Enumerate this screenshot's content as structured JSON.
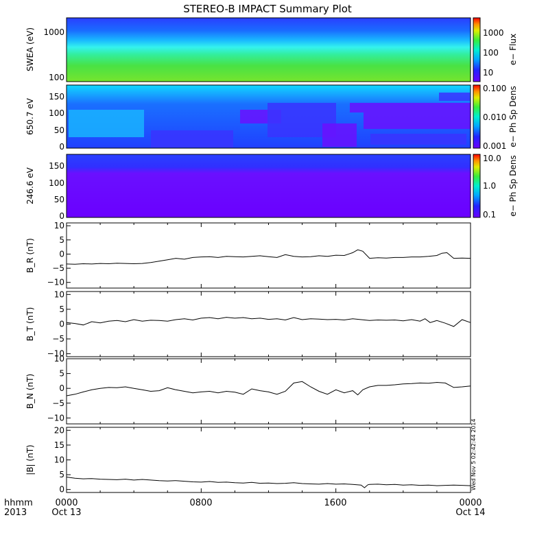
{
  "title": "STEREO-B IMPACT Summary Plot",
  "footer": {
    "hhmm_label": "hhmm",
    "year_label": "2013",
    "x_ticks": [
      "0000",
      "0800",
      "1600",
      "0000"
    ],
    "x_dates": [
      "Oct 13",
      "",
      "",
      "Oct 14"
    ],
    "stamp": "Wed Nov  5 02:42:44 2014"
  },
  "chart_data": [
    {
      "type": "heatmap",
      "ylabel": "SWEA (eV)",
      "y_scale": "log",
      "ylim": [
        95,
        2000
      ],
      "y_ticks": [
        "1000",
        "100"
      ],
      "colorbar": {
        "label": "e− Flux",
        "scale": "log",
        "ticks": [
          "1000",
          "100",
          "10"
        ]
      },
      "description_rows": [
        {
          "energy": 1500,
          "color": "#2a3fff"
        },
        {
          "energy": 900,
          "color": "#1a8cff"
        },
        {
          "energy": 500,
          "color": "#31f4d8"
        },
        {
          "energy": 300,
          "color": "#34ee7c"
        },
        {
          "energy": 150,
          "color": "#53e03b"
        },
        {
          "energy": 100,
          "color": "#6ae832"
        }
      ]
    },
    {
      "type": "heatmap",
      "ylabel": "650.7 eV",
      "ylim": [
        0,
        180
      ],
      "y_ticks": [
        "150",
        "100",
        "50",
        "0"
      ],
      "colorbar": {
        "label": "e− Ph Sp Dens",
        "scale": "log",
        "ticks": [
          "0.100",
          "0.010",
          "0.001"
        ]
      }
    },
    {
      "type": "heatmap",
      "ylabel": "246.6 eV",
      "ylim": [
        0,
        180
      ],
      "y_ticks": [
        "150",
        "100",
        "50",
        "0"
      ],
      "colorbar": {
        "label": "e− Ph Sp Dens",
        "scale": "log",
        "ticks": [
          "10.0",
          "1.0",
          "0.1"
        ]
      }
    },
    {
      "type": "line",
      "ylabel": "B_R (nT)",
      "ylim": [
        -12,
        11
      ],
      "y_ticks": [
        "10",
        "5",
        "0",
        "−5",
        "−10"
      ],
      "x_hours": [
        0,
        0.5,
        1,
        1.5,
        2,
        2.5,
        3,
        3.5,
        4,
        4.5,
        5,
        5.5,
        6,
        6.5,
        7,
        7.5,
        8,
        8.5,
        9,
        9.5,
        10,
        10.5,
        11,
        11.5,
        12,
        12.5,
        13,
        13.5,
        14,
        14.5,
        15,
        15.5,
        16,
        16.5,
        17,
        17.3,
        17.6,
        18,
        18.5,
        19,
        19.5,
        20,
        20.5,
        21,
        21.5,
        22,
        22.3,
        22.6,
        23,
        23.5,
        24
      ],
      "values": [
        -3.5,
        -3.6,
        -3.4,
        -3.5,
        -3.3,
        -3.4,
        -3.2,
        -3.3,
        -3.4,
        -3.3,
        -3.0,
        -2.5,
        -2.0,
        -1.5,
        -1.8,
        -1.2,
        -1.0,
        -0.9,
        -1.2,
        -0.8,
        -0.9,
        -1.0,
        -0.8,
        -0.6,
        -0.9,
        -1.2,
        -0.2,
        -0.8,
        -1.0,
        -0.9,
        -0.6,
        -0.8,
        -0.4,
        -0.5,
        0.5,
        1.5,
        1.0,
        -1.5,
        -1.3,
        -1.4,
        -1.2,
        -1.2,
        -1.0,
        -1.0,
        -0.8,
        -0.5,
        0.3,
        0.5,
        -1.5,
        -1.4,
        -1.5
      ]
    },
    {
      "type": "line",
      "ylabel": "B_T (nT)",
      "ylim": [
        -11,
        11
      ],
      "y_ticks": [
        "10",
        "5",
        "0",
        "−5",
        "−10"
      ],
      "x_hours": [
        0,
        0.5,
        1,
        1.5,
        2,
        2.5,
        3,
        3.5,
        4,
        4.5,
        5,
        5.5,
        6,
        6.5,
        7,
        7.5,
        8,
        8.5,
        9,
        9.5,
        10,
        10.5,
        11,
        11.5,
        12,
        12.5,
        13,
        13.5,
        14,
        14.5,
        15,
        15.5,
        16,
        16.5,
        17,
        17.5,
        18,
        18.5,
        19,
        19.5,
        20,
        20.5,
        21,
        21.3,
        21.6,
        22,
        22.5,
        23,
        23.5,
        24
      ],
      "values": [
        0.5,
        0.2,
        -0.3,
        0.8,
        0.4,
        1.0,
        1.2,
        0.8,
        1.5,
        1.0,
        1.3,
        1.2,
        1.0,
        1.5,
        1.8,
        1.4,
        2.0,
        2.2,
        1.8,
        2.3,
        2.0,
        2.2,
        1.8,
        2.0,
        1.6,
        1.8,
        1.4,
        2.2,
        1.5,
        1.8,
        1.7,
        1.5,
        1.6,
        1.4,
        1.8,
        1.5,
        1.2,
        1.4,
        1.3,
        1.4,
        1.1,
        1.5,
        1.0,
        1.8,
        0.5,
        1.2,
        0.3,
        -0.8,
        1.5,
        0.5
      ]
    },
    {
      "type": "line",
      "ylabel": "B_N (nT)",
      "ylim": [
        -12,
        10
      ],
      "y_ticks": [
        "10",
        "5",
        "0",
        "−5",
        "−10"
      ],
      "x_hours": [
        0,
        0.5,
        1,
        1.5,
        2,
        2.5,
        3,
        3.5,
        4,
        4.5,
        5,
        5.5,
        6,
        6.5,
        7,
        7.5,
        8,
        8.5,
        9,
        9.5,
        10,
        10.5,
        11,
        11.5,
        12,
        12.5,
        13,
        13.5,
        14,
        14.5,
        15,
        15.5,
        16,
        16.5,
        17,
        17.3,
        17.6,
        18,
        18.5,
        19,
        19.5,
        20,
        20.5,
        21,
        21.5,
        22,
        22.5,
        23,
        23.5,
        24
      ],
      "values": [
        -2.5,
        -2.0,
        -1.2,
        -0.5,
        0.0,
        0.3,
        0.2,
        0.5,
        0.0,
        -0.5,
        -1.0,
        -0.8,
        0.2,
        -0.5,
        -1.0,
        -1.5,
        -1.2,
        -1.0,
        -1.5,
        -1.0,
        -1.3,
        -2.0,
        -0.2,
        -0.8,
        -1.2,
        -2.0,
        -1.0,
        1.8,
        2.3,
        0.5,
        -1.0,
        -2.0,
        -0.5,
        -1.5,
        -0.8,
        -2.2,
        -0.5,
        0.5,
        1.0,
        1.0,
        1.2,
        1.5,
        1.6,
        1.8,
        1.7,
        2.0,
        1.8,
        0.3,
        0.5,
        0.8
      ]
    },
    {
      "type": "line",
      "ylabel": "|B| (nT)",
      "ylim": [
        -1,
        21
      ],
      "y_ticks": [
        "20",
        "15",
        "10",
        "5",
        "0"
      ],
      "x_hours": [
        0,
        0.5,
        1,
        1.5,
        2,
        2.5,
        3,
        3.5,
        4,
        4.5,
        5,
        5.5,
        6,
        6.5,
        7,
        7.5,
        8,
        8.5,
        9,
        9.5,
        10,
        10.5,
        11,
        11.5,
        12,
        12.5,
        13,
        13.5,
        14,
        14.5,
        15,
        15.5,
        16,
        16.5,
        17,
        17.5,
        17.7,
        17.9,
        18,
        18.5,
        19,
        19.5,
        20,
        20.5,
        21,
        21.5,
        22,
        22.5,
        23,
        23.5,
        24
      ],
      "values": [
        4.2,
        3.8,
        3.6,
        3.7,
        3.5,
        3.4,
        3.3,
        3.5,
        3.2,
        3.4,
        3.2,
        3.0,
        2.9,
        3.0,
        2.8,
        2.6,
        2.5,
        2.7,
        2.4,
        2.5,
        2.3,
        2.2,
        2.4,
        2.1,
        2.2,
        2.0,
        2.1,
        2.3,
        2.0,
        1.9,
        1.8,
        2.0,
        1.8,
        1.9,
        1.7,
        1.5,
        0.6,
        1.6,
        1.7,
        1.8,
        1.6,
        1.7,
        1.5,
        1.6,
        1.4,
        1.5,
        1.3,
        1.4,
        1.5,
        1.4,
        1.3
      ]
    }
  ]
}
